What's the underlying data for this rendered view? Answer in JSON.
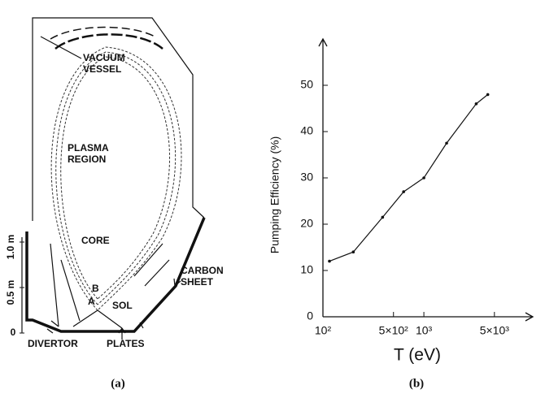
{
  "diagram": {
    "labels": {
      "vacuum_vessel": "VACUUM",
      "vacuum_vessel_2": "VESSEL",
      "plasma": "PLASMA",
      "region": "REGION",
      "core": "CORE",
      "b": "B",
      "a": "A",
      "sol": "SOL",
      "carbon": "CARBON",
      "sheet": "SHEET",
      "divertor": "DIVERTOR",
      "plates": "PLATES"
    },
    "scale": [
      "1.0 m",
      "0.5 m",
      "0"
    ],
    "caption": "(a)"
  },
  "chart_data": {
    "type": "line",
    "caption": "(b)",
    "x_label": "T (eV)",
    "y_label": "Pumping  Efficiency (%)",
    "x": [
      116,
      200,
      390,
      630,
      1000,
      1680,
      3300,
      4300
    ],
    "values": [
      12,
      14,
      21.5,
      27,
      30,
      37.5,
      46,
      48
    ],
    "color": "#111111",
    "x_log": true,
    "xlim": [
      100,
      12000
    ],
    "xticks": [
      {
        "value": 100,
        "label": "10²"
      },
      {
        "value": 500,
        "label": "5×10²"
      },
      {
        "value": 1000,
        "label": "10³"
      },
      {
        "value": 5000,
        "label": "5×10³"
      }
    ],
    "ylim": [
      0,
      60
    ],
    "yticks": [
      0,
      10,
      20,
      30,
      40,
      50
    ],
    "grid": false
  }
}
